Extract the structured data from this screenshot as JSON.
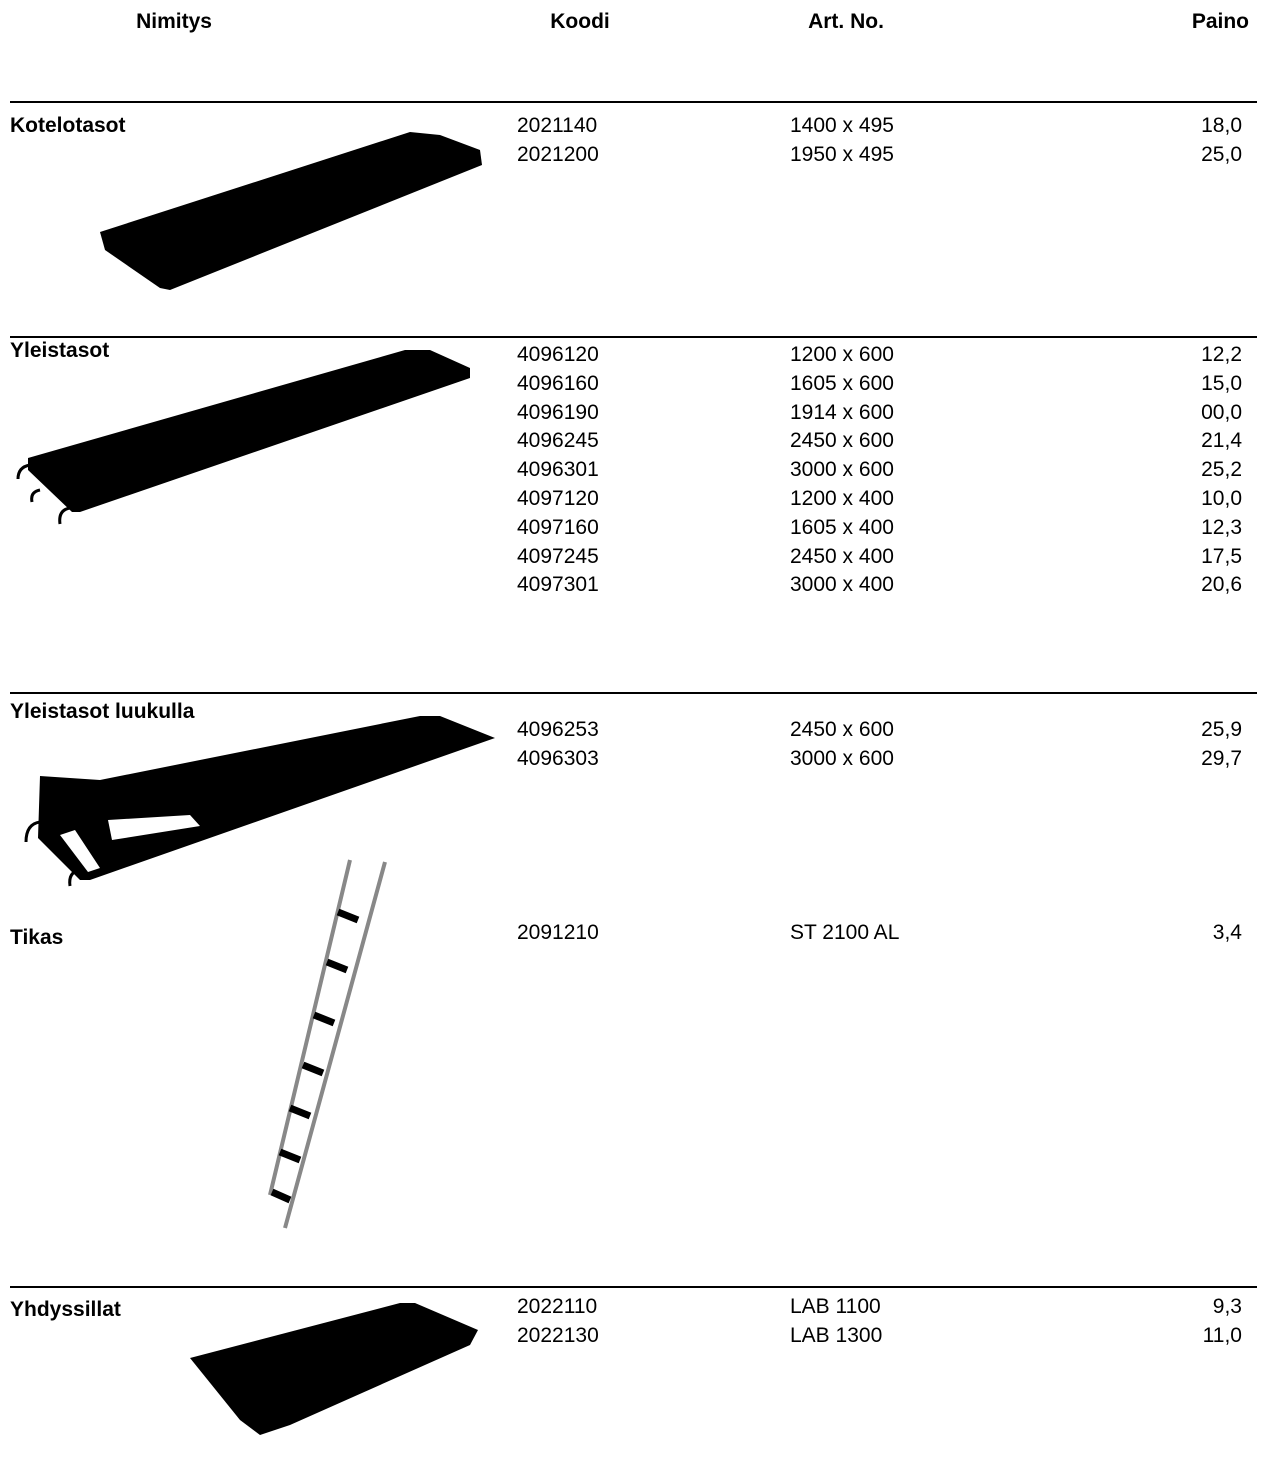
{
  "header": [
    "Nimitys",
    "Koodi",
    "Art. No.",
    "Paino"
  ],
  "sections": [
    {
      "name": "Kotelotasot",
      "rows": [
        [
          "2021140",
          "1400 x 495",
          "18,0"
        ],
        [
          "2021200",
          "1950 x 495",
          "25,0"
        ]
      ]
    },
    {
      "name": "Yleistasot",
      "rows": [
        [
          "4096120",
          "1200 x 600",
          "12,2"
        ],
        [
          "4096160",
          "1605 x 600",
          "15,0"
        ],
        [
          "4096190",
          "1914 x 600",
          "00,0"
        ],
        [
          "4096245",
          "2450 x 600",
          "21,4"
        ],
        [
          "4096301",
          "3000 x 600",
          "25,2"
        ],
        [
          "4097120",
          "1200 x 400",
          "10,0"
        ],
        [
          "4097160",
          "1605 x 400",
          "12,3"
        ],
        [
          "4097245",
          "2450 x 400",
          "17,5"
        ],
        [
          "4097301",
          "3000 x 400",
          "20,6"
        ]
      ]
    },
    {
      "name": "Yleistasot luukulla",
      "rows": [
        [
          "4096253",
          "2450 x 600",
          "25,9"
        ],
        [
          "4096303",
          "3000 x 600",
          "29,7"
        ]
      ]
    },
    {
      "name": "Tikas",
      "rows": [
        [
          "2091210",
          "ST 2100 AL",
          "3,4"
        ]
      ]
    },
    {
      "name": "Yhdyssillat",
      "rows": [
        [
          "2022110",
          "LAB 1100",
          "9,3"
        ],
        [
          "2022130",
          "LAB 1300",
          "11,0"
        ]
      ]
    }
  ]
}
